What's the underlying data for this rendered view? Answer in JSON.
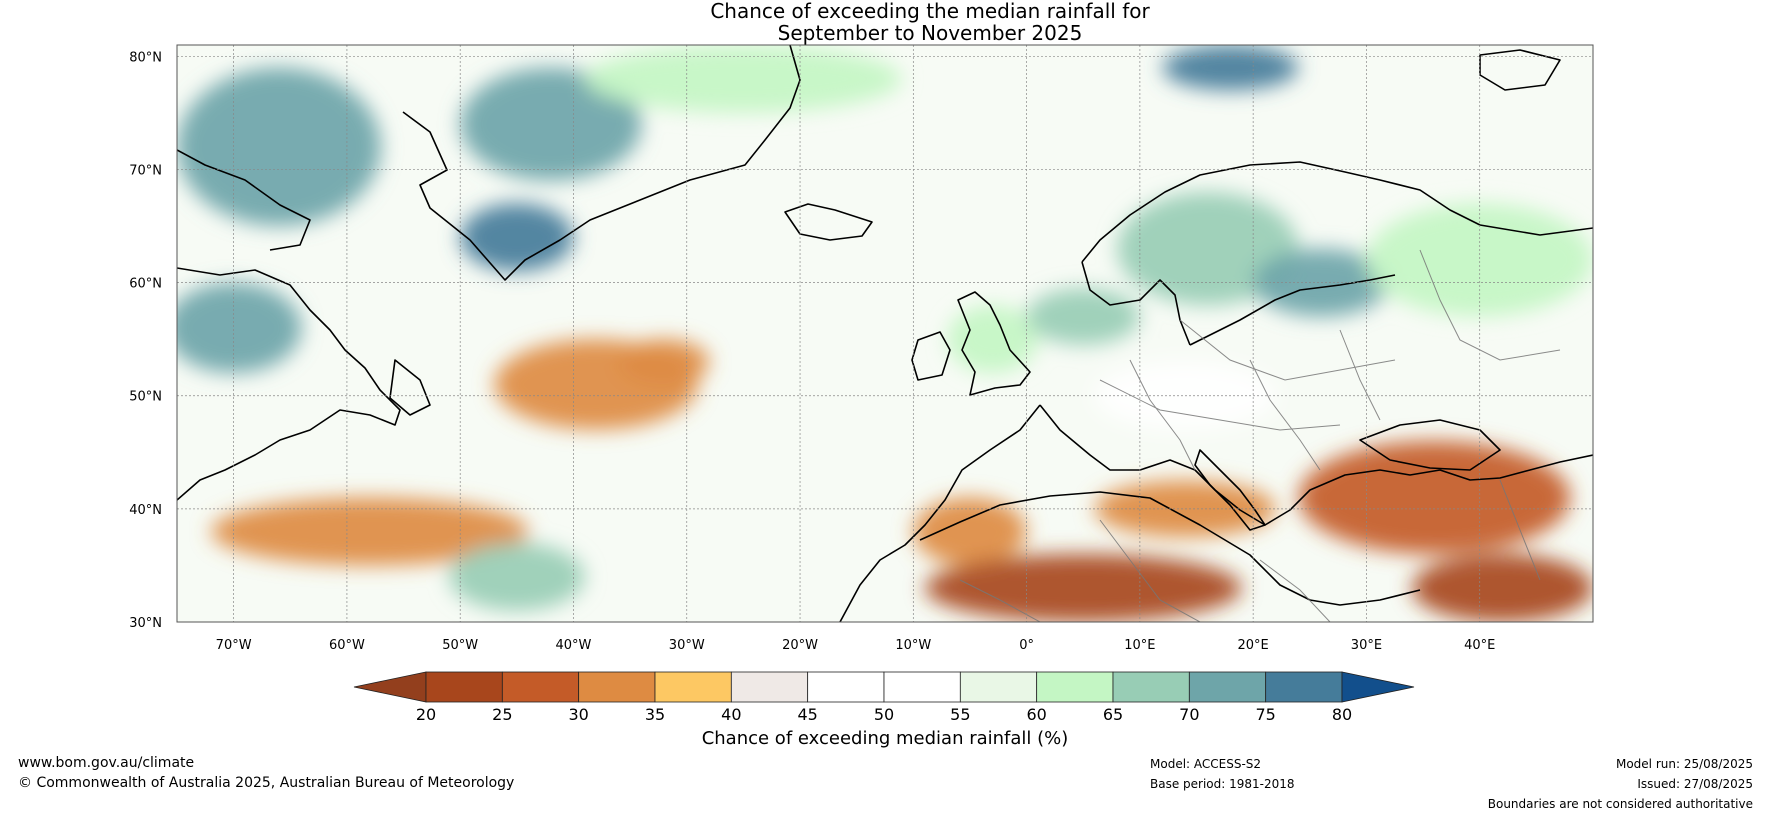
{
  "title": {
    "line1": "Chance of exceeding the median rainfall for",
    "line2": "September to November 2025"
  },
  "map": {
    "projection": "equirectangular",
    "lon_range": [
      -75,
      50
    ],
    "lat_range": [
      30,
      81
    ],
    "lat_ticks": [
      {
        "value": 30,
        "label": "30°N"
      },
      {
        "value": 40,
        "label": "40°N"
      },
      {
        "value": 50,
        "label": "50°N"
      },
      {
        "value": 60,
        "label": "60°N"
      },
      {
        "value": 70,
        "label": "70°N"
      },
      {
        "value": 80,
        "label": "80°N"
      }
    ],
    "lon_ticks": [
      {
        "value": -70,
        "label": "70°W"
      },
      {
        "value": -60,
        "label": "60°W"
      },
      {
        "value": -50,
        "label": "50°W"
      },
      {
        "value": -40,
        "label": "40°W"
      },
      {
        "value": -30,
        "label": "30°W"
      },
      {
        "value": -20,
        "label": "20°W"
      },
      {
        "value": -10,
        "label": "10°W"
      },
      {
        "value": 0,
        "label": "0°"
      },
      {
        "value": 10,
        "label": "10°E"
      },
      {
        "value": 20,
        "label": "20°E"
      },
      {
        "value": 30,
        "label": "30°E"
      },
      {
        "value": 40,
        "label": "40°E"
      }
    ],
    "regions": [
      {
        "name": "Western Greenland / Baffin",
        "lon": -66,
        "lat": 72,
        "rlon": 9,
        "rlat": 7,
        "value": 72
      },
      {
        "name": "Central Greenland",
        "lon": -42,
        "lat": 74,
        "rlon": 8,
        "rlat": 5,
        "value": 70
      },
      {
        "name": "Southern Greenland",
        "lon": -45,
        "lat": 64,
        "rlon": 5,
        "rlat": 3,
        "value": 76
      },
      {
        "name": "Labrador",
        "lon": -70,
        "lat": 56,
        "rlon": 6,
        "rlat": 4,
        "value": 74
      },
      {
        "name": "Arctic north",
        "lon": -25,
        "lat": 78,
        "rlon": 14,
        "rlat": 3,
        "value": 63
      },
      {
        "name": "Svalbard",
        "lon": 18,
        "lat": 79,
        "rlon": 6,
        "rlat": 2,
        "value": 76
      },
      {
        "name": "Scandinavia",
        "lon": 16,
        "lat": 63,
        "rlon": 8,
        "rlat": 5,
        "value": 68
      },
      {
        "name": "Baltic / Finland",
        "lon": 26,
        "lat": 60,
        "rlon": 6,
        "rlat": 3,
        "value": 72
      },
      {
        "name": "Western Russia",
        "lon": 40,
        "lat": 62,
        "rlon": 10,
        "rlat": 5,
        "value": 64
      },
      {
        "name": "British Isles",
        "lon": -3,
        "lat": 55,
        "rlon": 4,
        "rlat": 3,
        "value": 62
      },
      {
        "name": "North Sea",
        "lon": 5,
        "lat": 57,
        "rlon": 5,
        "rlat": 2.5,
        "value": 66
      },
      {
        "name": "Central Europe",
        "lon": 14,
        "lat": 50,
        "rlon": 8,
        "rlat": 3,
        "value": 50
      },
      {
        "name": "North Atlantic",
        "lon": -38,
        "lat": 51,
        "rlon": 9,
        "rlat": 4,
        "value": 30
      },
      {
        "name": "Mid-Atlantic",
        "lon": -32,
        "lat": 53,
        "rlon": 4,
        "rlat": 2,
        "value": 33
      },
      {
        "name": "Western Atlantic",
        "lon": -58,
        "lat": 38,
        "rlon": 14,
        "rlat": 3,
        "value": 31
      },
      {
        "name": "Subtropical Atlantic",
        "lon": -45,
        "lat": 34,
        "rlon": 6,
        "rlat": 3,
        "value": 65
      },
      {
        "name": "Iberia / Morocco",
        "lon": -5,
        "lat": 38,
        "rlon": 5,
        "rlat": 3,
        "value": 34
      },
      {
        "name": "North Africa",
        "lon": 5,
        "lat": 33,
        "rlon": 14,
        "rlat": 3,
        "value": 23
      },
      {
        "name": "Mediterranean",
        "lon": 14,
        "lat": 40,
        "rlon": 8,
        "rlat": 2.5,
        "value": 31
      },
      {
        "name": "Black Sea / Turkey",
        "lon": 36,
        "lat": 41,
        "rlon": 12,
        "rlat": 5,
        "value": 27
      },
      {
        "name": "Middle East",
        "lon": 42,
        "lat": 33,
        "rlon": 8,
        "rlat": 3,
        "value": 23
      }
    ]
  },
  "colorbar": {
    "label": "Chance of exceeding median rainfall (%)",
    "ticks": [
      "20",
      "25",
      "30",
      "35",
      "40",
      "45",
      "50",
      "55",
      "60",
      "65",
      "70",
      "75",
      "80"
    ],
    "colors": [
      "#a8461c",
      "#c45b28",
      "#de8b42",
      "#fdc863",
      "#efe9e6",
      "#ffffff",
      "#ffffff",
      "#e9f7e6",
      "#c4f6c4",
      "#98cdb5",
      "#6ea5a9",
      "#457c9a"
    ],
    "under_color": "#933f1d",
    "over_color": "#124f8c"
  },
  "footer": {
    "url": "www.bom.gov.au/climate",
    "copyright": "© Commonwealth of Australia 2025, Australian Bureau of Meteorology",
    "model": "Model: ACCESS-S2",
    "base_period": "Base period: 1981-2018",
    "model_run": "Model run: 25/08/2025",
    "issued": "Issued: 27/08/2025",
    "disclaimer": "Boundaries are not considered authoritative"
  }
}
